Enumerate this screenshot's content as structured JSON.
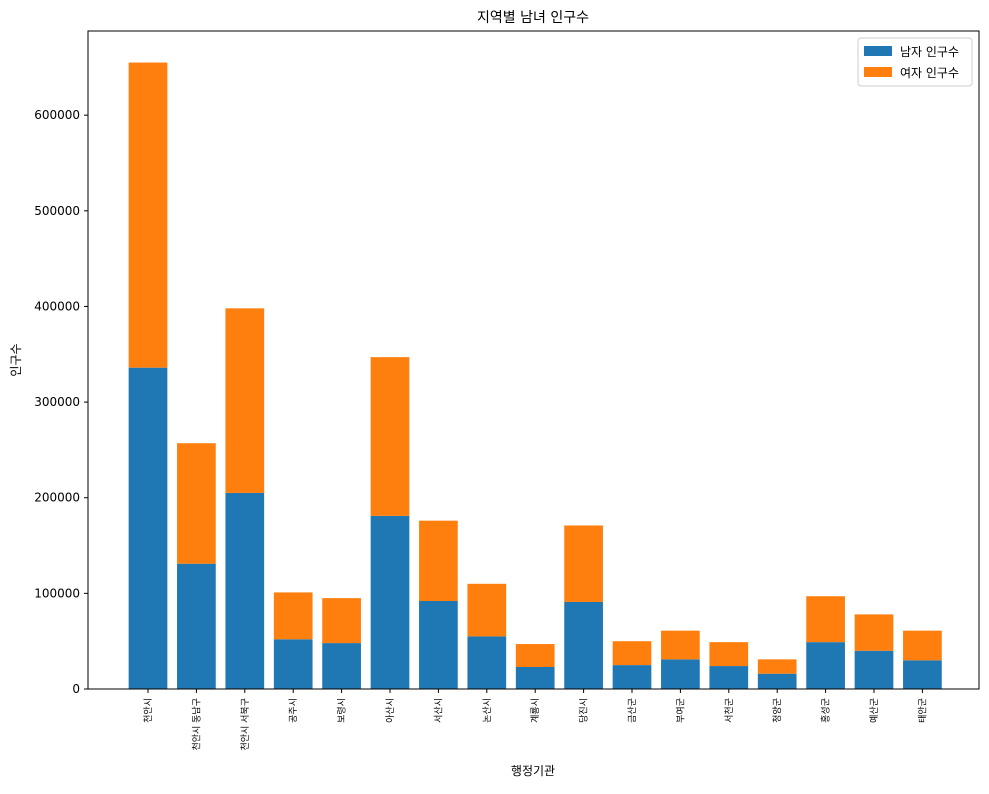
{
  "chart_data": {
    "type": "bar",
    "stacked": true,
    "title": "지역별 남녀 인구수",
    "xlabel": "행정기관",
    "ylabel": "인구수",
    "ylim": [
      0,
      688000
    ],
    "yticks": [
      0,
      100000,
      200000,
      300000,
      400000,
      500000,
      600000
    ],
    "grid": false,
    "legend_position": "top-right",
    "categories": [
      "천안시",
      "천안시 동남구",
      "천안시 서북구",
      "공주시",
      "보령시",
      "아산시",
      "서산시",
      "논산시",
      "계룡시",
      "당진시",
      "금산군",
      "부여군",
      "서천군",
      "청양군",
      "홍성군",
      "예산군",
      "태안군"
    ],
    "series": [
      {
        "name": "남자 인구수",
        "color": "#1f77b4",
        "values": [
          336000,
          131000,
          205000,
          52000,
          48000,
          181000,
          92000,
          55000,
          23000,
          91000,
          25000,
          31000,
          24000,
          16000,
          49000,
          40000,
          30000
        ]
      },
      {
        "name": "여자 인구수",
        "color": "#ff7f0e",
        "values": [
          319000,
          126000,
          193000,
          49000,
          47000,
          166000,
          84000,
          55000,
          24000,
          80000,
          25000,
          30000,
          25000,
          15000,
          48000,
          38000,
          31000
        ]
      }
    ]
  }
}
